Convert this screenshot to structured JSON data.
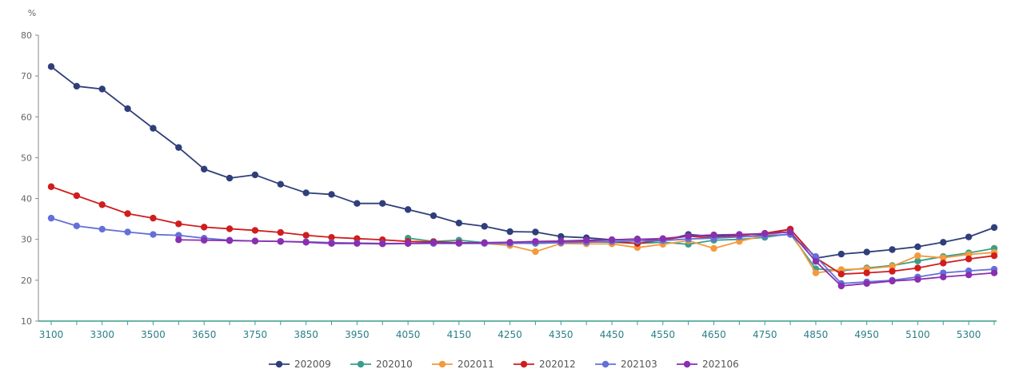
{
  "chart_data": {
    "type": "line",
    "title": "",
    "xlabel": "",
    "ylabel": "%",
    "ylim": [
      10,
      80
    ],
    "yticks": [
      10,
      20,
      30,
      40,
      50,
      60,
      70,
      80
    ],
    "grid": false,
    "legend_position": "bottom-center",
    "x": [
      "3100",
      "3200",
      "3300",
      "3400",
      "3500",
      "3600",
      "3650",
      "3700",
      "3750",
      "3800",
      "3850",
      "3900",
      "3950",
      "4000",
      "4050",
      "4100",
      "4150",
      "4200",
      "4250",
      "4300",
      "4350",
      "4400",
      "4450",
      "4500",
      "4550",
      "4600",
      "4650",
      "4700",
      "4750",
      "4800",
      "4850",
      "4900",
      "4950",
      "5000",
      "5100",
      "5200",
      "5300",
      "5400"
    ],
    "x_tick_labels": [
      "3100",
      "3300",
      "3500",
      "3650",
      "3750",
      "3850",
      "3950",
      "4050",
      "4150",
      "4250",
      "4350",
      "4450",
      "4550",
      "4650",
      "4750",
      "4850",
      "4950",
      "5100",
      "5300"
    ],
    "series": [
      {
        "name": "202009",
        "color": "#2f3f7a",
        "values": [
          72.3,
          67.5,
          66.8,
          62.0,
          57.2,
          52.5,
          47.2,
          45.0,
          45.8,
          43.5,
          41.4,
          41.0,
          38.8,
          38.8,
          37.3,
          35.8,
          34.0,
          33.2,
          31.9,
          31.8,
          30.7,
          30.4,
          29.9,
          30.1,
          29.7,
          31.2,
          30.7,
          31.2,
          31.2,
          32.5,
          25.4,
          26.4,
          26.9,
          27.5,
          28.2,
          29.3,
          30.6,
          32.9
        ]
      },
      {
        "name": "202010",
        "color": "#3a9e8c",
        "values": [
          null,
          null,
          null,
          null,
          null,
          null,
          null,
          null,
          null,
          null,
          null,
          null,
          null,
          null,
          30.3,
          29.5,
          29.8,
          29.2,
          29.1,
          29.0,
          29.2,
          29.4,
          29.3,
          29.0,
          29.3,
          28.8,
          29.8,
          30.0,
          30.5,
          31.4,
          22.8,
          22.3,
          23.0,
          23.6,
          24.7,
          25.8,
          26.7,
          27.8
        ]
      },
      {
        "name": "202011",
        "color": "#f39a3c",
        "values": [
          null,
          null,
          null,
          null,
          null,
          null,
          null,
          null,
          null,
          null,
          null,
          null,
          null,
          null,
          null,
          null,
          null,
          29.0,
          28.5,
          27.0,
          29.0,
          28.9,
          28.9,
          28.0,
          28.8,
          29.7,
          27.8,
          29.5,
          31.0,
          32.0,
          21.8,
          22.6,
          22.8,
          23.4,
          26.0,
          25.5,
          26.3,
          26.8
        ]
      },
      {
        "name": "202012",
        "color": "#d01d1d",
        "values": [
          42.9,
          40.7,
          38.5,
          36.3,
          35.2,
          33.8,
          33.0,
          32.6,
          32.2,
          31.7,
          31.0,
          30.5,
          30.2,
          29.9,
          29.5,
          29.4,
          29.2,
          29.1,
          29.1,
          29.3,
          29.5,
          29.5,
          29.5,
          29.0,
          29.9,
          30.8,
          30.3,
          30.9,
          31.5,
          32.5,
          25.5,
          21.5,
          21.8,
          22.2,
          23.0,
          24.2,
          25.2,
          26.0
        ]
      },
      {
        "name": "202103",
        "color": "#6470d8",
        "values": [
          35.2,
          33.3,
          32.5,
          31.8,
          31.2,
          31.0,
          30.3,
          29.8,
          29.6,
          29.5,
          29.4,
          29.2,
          29.1,
          29.0,
          29.0,
          29.0,
          29.0,
          29.0,
          29.0,
          29.1,
          29.2,
          29.3,
          29.5,
          29.6,
          29.7,
          30.1,
          30.3,
          30.6,
          30.9,
          31.2,
          25.8,
          19.2,
          19.6,
          20.0,
          20.8,
          21.8,
          22.3,
          22.7
        ]
      },
      {
        "name": "202106",
        "color": "#8a2fb0",
        "values": [
          null,
          null,
          null,
          null,
          null,
          29.9,
          29.8,
          29.7,
          29.6,
          29.5,
          29.3,
          29.0,
          29.0,
          28.9,
          29.0,
          29.2,
          29.1,
          29.2,
          29.3,
          29.5,
          29.6,
          29.8,
          29.9,
          30.0,
          30.2,
          30.8,
          31.1,
          31.2,
          31.4,
          31.8,
          24.6,
          18.6,
          19.2,
          19.8,
          20.2,
          20.8,
          21.3,
          21.8
        ]
      }
    ]
  }
}
